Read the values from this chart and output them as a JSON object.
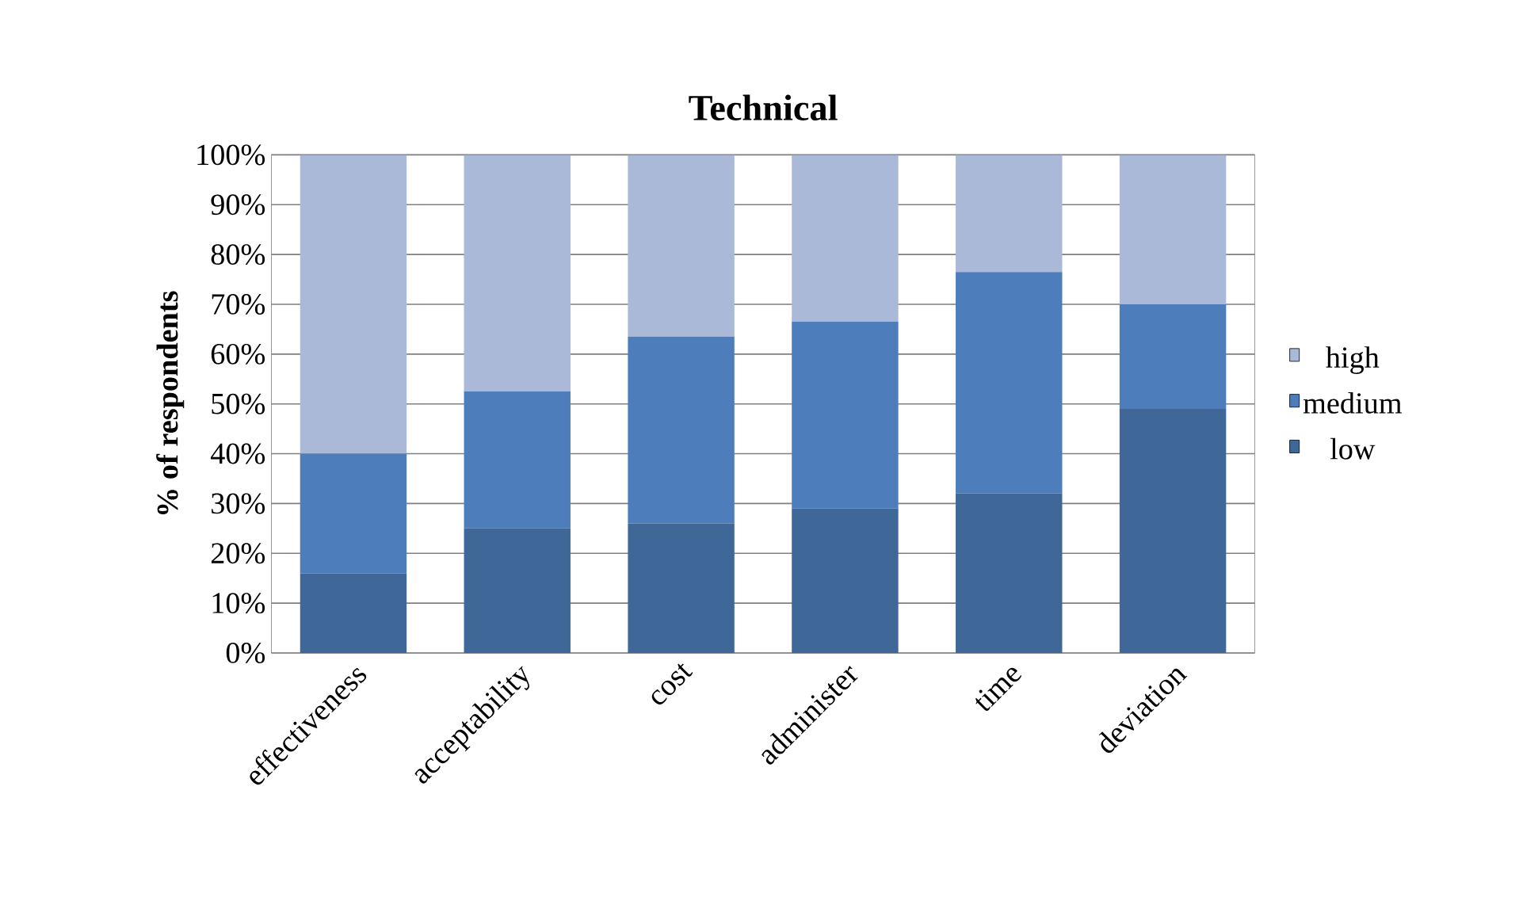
{
  "chart_data": {
    "type": "bar",
    "stacked": true,
    "title": "Technical",
    "ylabel": "% of respondents",
    "categories": [
      "effectiveness",
      "acceptability",
      "cost",
      "administer",
      "time",
      "deviation"
    ],
    "series": [
      {
        "name": "low",
        "color": "#3f6899",
        "values": [
          16,
          25,
          26,
          29,
          32,
          49
        ]
      },
      {
        "name": "medium",
        "color": "#4d7ebb",
        "values": [
          24,
          27.5,
          37.5,
          37.5,
          44.5,
          21
        ]
      },
      {
        "name": "high",
        "color": "#aab9d7",
        "values": [
          60,
          47.5,
          36.5,
          33.5,
          23.5,
          30
        ]
      }
    ],
    "ylim": [
      0,
      100
    ],
    "yticks": [
      {
        "value": 0,
        "label": "0%"
      },
      {
        "value": 10,
        "label": "10%"
      },
      {
        "value": 20,
        "label": "20%"
      },
      {
        "value": 30,
        "label": "30%"
      },
      {
        "value": 40,
        "label": "40%"
      },
      {
        "value": 50,
        "label": "50%"
      },
      {
        "value": 60,
        "label": "60%"
      },
      {
        "value": 70,
        "label": "70%"
      },
      {
        "value": 80,
        "label": "80%"
      },
      {
        "value": 90,
        "label": "90%"
      },
      {
        "value": 100,
        "label": "100%"
      }
    ],
    "grid": "y",
    "legend": "right"
  }
}
